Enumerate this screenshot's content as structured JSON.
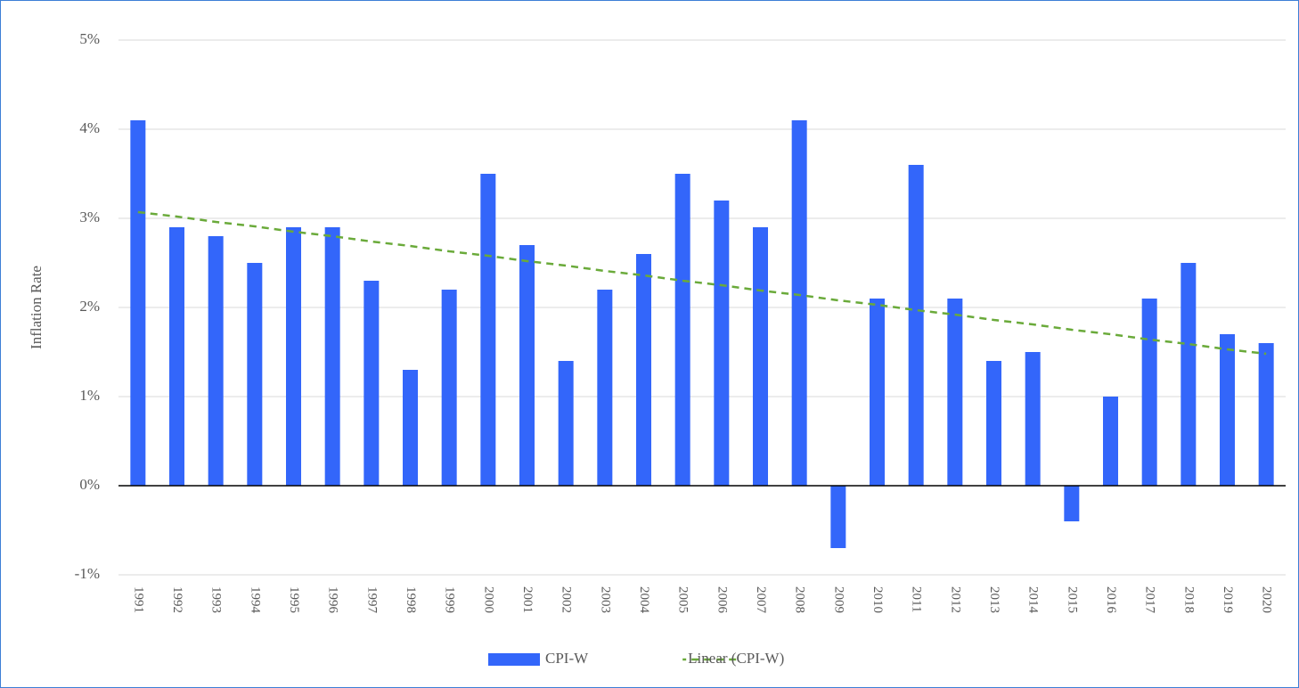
{
  "chart_data": {
    "type": "bar",
    "y_label": "Inflation Rate",
    "categories": [
      "1991",
      "1992",
      "1993",
      "1994",
      "1995",
      "1996",
      "1997",
      "1998",
      "1999",
      "2000",
      "2001",
      "2002",
      "2003",
      "2004",
      "2005",
      "2006",
      "2007",
      "2008",
      "2009",
      "2010",
      "2011",
      "2012",
      "2013",
      "2014",
      "2015",
      "2016",
      "2017",
      "2018",
      "2019",
      "2020"
    ],
    "series": [
      {
        "name": "CPI-W",
        "type": "bar",
        "color": "#3366fa",
        "values": [
          4.1,
          2.9,
          2.8,
          2.5,
          2.9,
          2.9,
          2.3,
          1.3,
          2.2,
          3.5,
          2.7,
          1.4,
          2.2,
          2.6,
          3.5,
          3.2,
          2.9,
          4.1,
          -0.7,
          2.1,
          3.6,
          2.1,
          1.4,
          1.5,
          -0.4,
          1.0,
          2.1,
          2.5,
          1.7,
          1.6
        ]
      },
      {
        "name": "Linear (CPI-W)",
        "type": "line",
        "dashed": true,
        "color": "#6aaa3a",
        "values": [
          3.07,
          3.02,
          2.96,
          2.91,
          2.85,
          2.8,
          2.74,
          2.69,
          2.63,
          2.58,
          2.52,
          2.47,
          2.41,
          2.36,
          2.3,
          2.25,
          2.19,
          2.14,
          2.08,
          2.03,
          1.97,
          1.92,
          1.86,
          1.81,
          1.75,
          1.7,
          1.64,
          1.59,
          1.53,
          1.48
        ]
      }
    ],
    "ylim": [
      -1,
      5
    ],
    "yticks": [
      {
        "value": -1,
        "label": "-1%"
      },
      {
        "value": 0,
        "label": "0%"
      },
      {
        "value": 1,
        "label": "1%"
      },
      {
        "value": 2,
        "label": "2%"
      },
      {
        "value": 3,
        "label": "3%"
      },
      {
        "value": 4,
        "label": "4%"
      },
      {
        "value": 5,
        "label": "5%"
      }
    ],
    "grid": true,
    "legend": "bottom"
  }
}
